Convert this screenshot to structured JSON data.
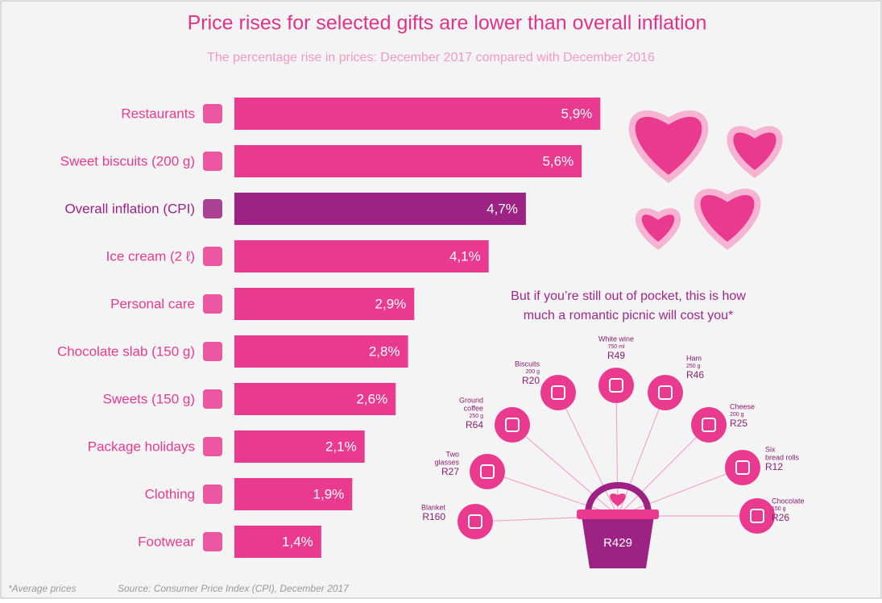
{
  "chart_data": {
    "type": "bar",
    "title": "Price rises for selected gifts are lower than overall inflation",
    "subtitle": "The percentage rise in prices: December 2017 compared with December 2016",
    "categories": [
      "Restaurants",
      "Sweet biscuits (200 g)",
      "Overall inflation (CPI)",
      "Ice cream (2 ℓ)",
      "Personal care",
      "Chocolate slab (150 g)",
      "Sweets (150 g)",
      "Package holidays",
      "Clothing",
      "Footwear"
    ],
    "values": [
      5.9,
      5.6,
      4.7,
      4.1,
      2.9,
      2.8,
      2.6,
      2.1,
      1.9,
      1.4
    ],
    "value_labels": [
      "5,9%",
      "5,6%",
      "4,7%",
      "4,1%",
      "2,9%",
      "2,8%",
      "2,6%",
      "2,1%",
      "1,9%",
      "1,4%"
    ],
    "colors": [
      "#ea3a90",
      "#ea3a90",
      "#9c2383",
      "#ea3a90",
      "#ea3a90",
      "#ea3a90",
      "#ea3a90",
      "#ea3a90",
      "#ea3a90",
      "#ea3a90"
    ]
  },
  "picnic": {
    "heading": [
      "But if you’re still out of pocket, this is how",
      "much a romantic picnic will cost you*"
    ],
    "total": "R429",
    "items": [
      {
        "label": [
          "Blanket"
        ],
        "price": "R160"
      },
      {
        "label": [
          "Two",
          "glasses"
        ],
        "price": "R27"
      },
      {
        "label": [
          "Ground",
          "coffee"
        ],
        "detail": "250 g",
        "price": "R64"
      },
      {
        "label": [
          "Biscuits"
        ],
        "detail": "200 g",
        "price": "R20"
      },
      {
        "label": [
          "White wine"
        ],
        "detail": "750 ml",
        "price": "R49"
      },
      {
        "label": [
          "Ham"
        ],
        "detail": "250 g",
        "price": "R46"
      },
      {
        "label": [
          "Cheese"
        ],
        "detail": "200 g",
        "price": "R25"
      },
      {
        "label": [
          "Six",
          "bread rolls"
        ],
        "price": "R12"
      },
      {
        "label": [
          "Chocolate"
        ],
        "detail": "150 g",
        "price": "R26"
      }
    ]
  },
  "footer": {
    "note": "*Average prices",
    "source": "Source: Consumer Price Index (CPI), December 2017"
  }
}
